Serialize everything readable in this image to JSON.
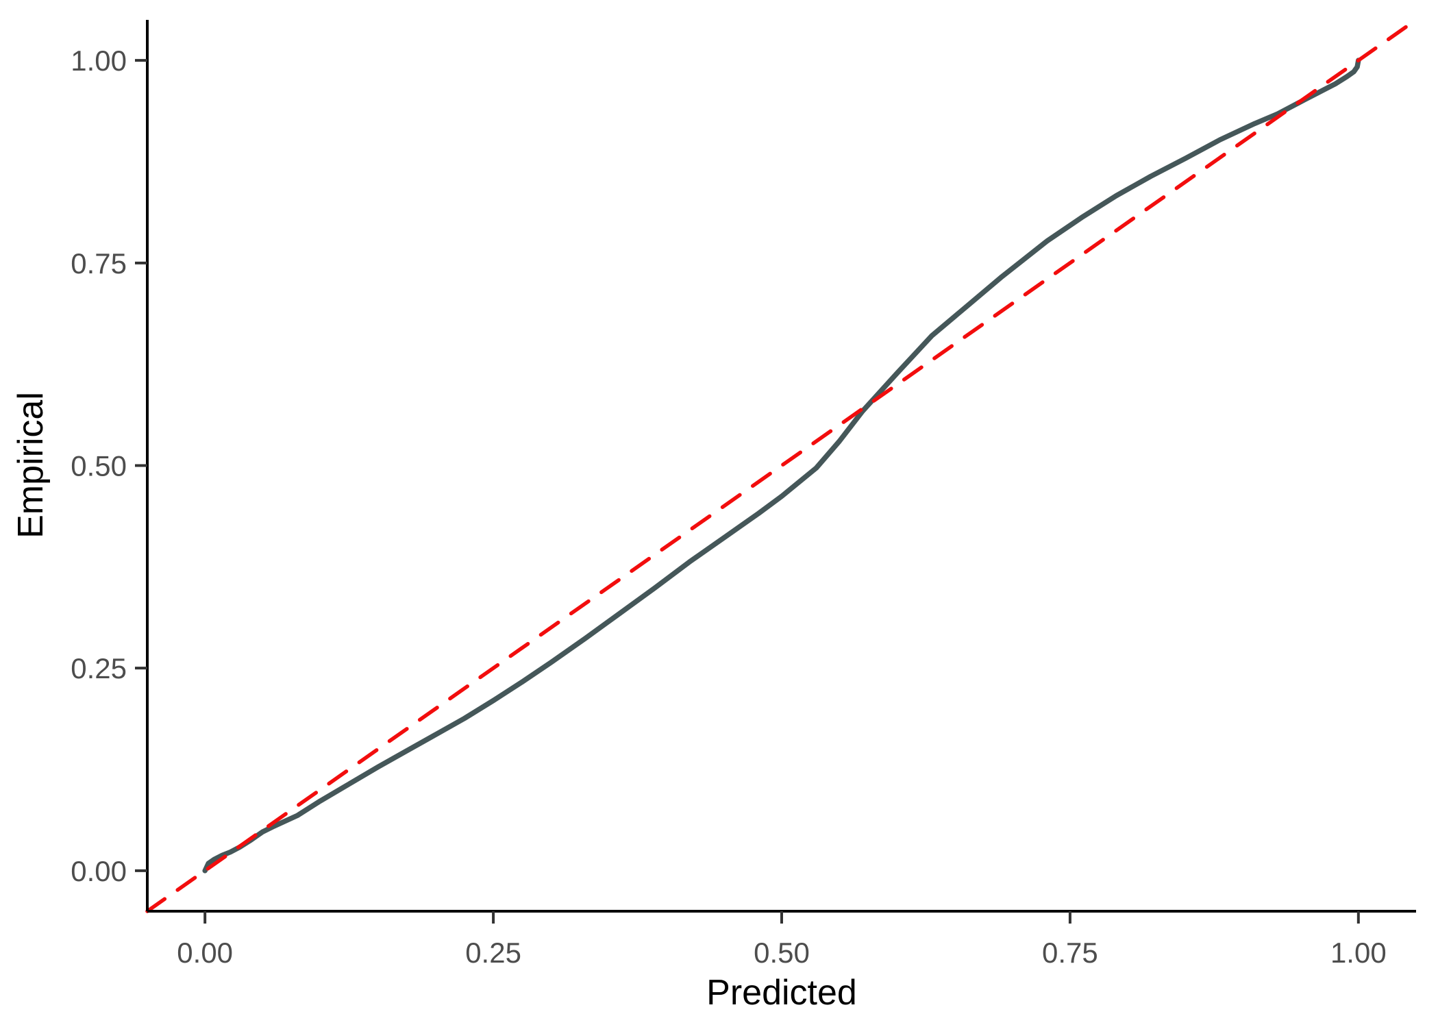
{
  "figure": {
    "background": "#FFFFFF",
    "axis": {
      "xlabel": "Predicted",
      "ylabel": "Empirical",
      "line_color": "#000000",
      "tick_color": "#333333",
      "tick_label_color": "#4D4D4D"
    }
  },
  "chart_data": {
    "type": "line",
    "title": "",
    "xlabel": "Predicted",
    "ylabel": "Empirical",
    "xlim": [
      -0.05,
      1.05
    ],
    "ylim": [
      -0.05,
      1.05
    ],
    "grid": false,
    "legend": "none",
    "x_ticks": {
      "values": [
        0,
        0.25,
        0.5,
        0.75,
        1.0
      ],
      "labels": [
        "0.00",
        "0.25",
        "0.50",
        "0.75",
        "1.00"
      ]
    },
    "y_ticks": {
      "values": [
        0,
        0.25,
        0.5,
        0.75,
        1.0
      ],
      "labels": [
        "0.00",
        "0.25",
        "0.50",
        "0.75",
        "1.00"
      ]
    },
    "series": [
      {
        "name": "calibration-curve",
        "color": "#455759",
        "style": "solid",
        "points": [
          [
            0.0,
            0.0
          ],
          [
            0.003,
            0.009
          ],
          [
            0.008,
            0.014
          ],
          [
            0.015,
            0.019
          ],
          [
            0.022,
            0.023
          ],
          [
            0.03,
            0.029
          ],
          [
            0.04,
            0.038
          ],
          [
            0.05,
            0.048
          ],
          [
            0.06,
            0.055
          ],
          [
            0.08,
            0.068
          ],
          [
            0.1,
            0.086
          ],
          [
            0.125,
            0.107
          ],
          [
            0.15,
            0.128
          ],
          [
            0.175,
            0.148
          ],
          [
            0.2,
            0.168
          ],
          [
            0.225,
            0.188
          ],
          [
            0.25,
            0.21
          ],
          [
            0.275,
            0.233
          ],
          [
            0.3,
            0.257
          ],
          [
            0.33,
            0.287
          ],
          [
            0.36,
            0.318
          ],
          [
            0.39,
            0.349
          ],
          [
            0.42,
            0.381
          ],
          [
            0.452,
            0.413
          ],
          [
            0.48,
            0.441
          ],
          [
            0.5,
            0.462
          ],
          [
            0.53,
            0.497
          ],
          [
            0.55,
            0.53
          ],
          [
            0.57,
            0.567
          ],
          [
            0.6,
            0.614
          ],
          [
            0.63,
            0.66
          ],
          [
            0.66,
            0.696
          ],
          [
            0.69,
            0.732
          ],
          [
            0.73,
            0.777
          ],
          [
            0.76,
            0.806
          ],
          [
            0.79,
            0.833
          ],
          [
            0.82,
            0.857
          ],
          [
            0.85,
            0.879
          ],
          [
            0.88,
            0.902
          ],
          [
            0.91,
            0.922
          ],
          [
            0.93,
            0.934
          ],
          [
            0.95,
            0.949
          ],
          [
            0.965,
            0.96
          ],
          [
            0.98,
            0.971
          ],
          [
            0.99,
            0.98
          ],
          [
            0.996,
            0.986
          ],
          [
            0.999,
            0.992
          ],
          [
            1.0,
            1.0
          ]
        ]
      },
      {
        "name": "ideal-diagonal",
        "color": "#F20D0D",
        "style": "dashed",
        "points": [
          [
            -0.05,
            -0.05
          ],
          [
            1.05,
            1.05
          ]
        ]
      }
    ]
  }
}
